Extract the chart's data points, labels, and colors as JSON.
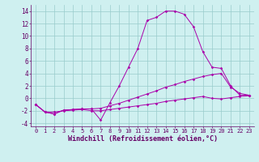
{
  "xlabel": "Windchill (Refroidissement éolien,°C)",
  "background_color": "#cff0f0",
  "grid_color": "#99cccc",
  "line_color": "#aa00aa",
  "x": [
    0,
    1,
    2,
    3,
    4,
    5,
    6,
    7,
    8,
    9,
    10,
    11,
    12,
    13,
    14,
    15,
    16,
    17,
    18,
    19,
    20,
    21,
    22,
    23
  ],
  "series1": [
    -1.0,
    -2.2,
    -2.5,
    -1.9,
    -1.8,
    -1.7,
    -1.7,
    -3.5,
    -0.7,
    2.0,
    5.0,
    8.0,
    12.5,
    13.0,
    14.0,
    14.0,
    13.5,
    11.5,
    7.5,
    5.0,
    4.8,
    2.0,
    0.5,
    0.5
  ],
  "series2": [
    -1.0,
    -2.2,
    -2.5,
    -1.9,
    -1.8,
    -1.7,
    -1.7,
    -1.6,
    -1.2,
    -0.8,
    -0.3,
    0.2,
    0.7,
    1.2,
    1.8,
    2.2,
    2.7,
    3.1,
    3.5,
    3.8,
    4.0,
    1.8,
    0.8,
    0.5
  ],
  "series3": [
    -1.0,
    -2.2,
    -2.2,
    -2.0,
    -1.9,
    -1.8,
    -2.0,
    -2.0,
    -1.8,
    -1.6,
    -1.4,
    -1.2,
    -1.0,
    -0.8,
    -0.5,
    -0.3,
    -0.1,
    0.1,
    0.3,
    0.0,
    -0.1,
    0.1,
    0.3,
    0.4
  ],
  "xlim": [
    -0.5,
    23.5
  ],
  "ylim": [
    -4.5,
    15.0
  ],
  "yticks": [
    -4,
    -2,
    0,
    2,
    4,
    6,
    8,
    10,
    12,
    14
  ],
  "xticks": [
    0,
    1,
    2,
    3,
    4,
    5,
    6,
    7,
    8,
    9,
    10,
    11,
    12,
    13,
    14,
    15,
    16,
    17,
    18,
    19,
    20,
    21,
    22,
    23
  ],
  "tick_fontsize": 5.0,
  "xlabel_fontsize": 6.0,
  "ytick_fontsize": 5.5
}
